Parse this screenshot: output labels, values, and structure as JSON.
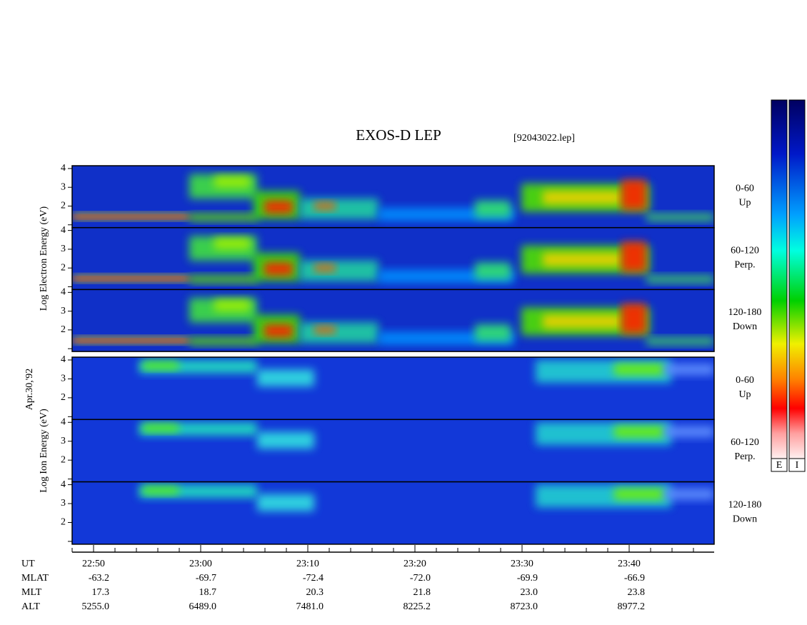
{
  "title": "EXOS-D LEP",
  "file": "[92043022.lep]",
  "date": "Apr.30,'92",
  "groups": [
    {
      "label": "Log Electron Energy (eV)",
      "panels": [
        {
          "ticks": [
            4,
            3,
            2
          ],
          "label": [
            "0-60",
            "Up"
          ]
        },
        {
          "ticks": [
            4,
            3,
            2
          ],
          "label": [
            "60-120",
            "Perp."
          ]
        },
        {
          "ticks": [
            4,
            3,
            2
          ],
          "label": [
            "120-180",
            "Down"
          ]
        }
      ]
    },
    {
      "label": "Log Ion Energy (eV)",
      "panels": [
        {
          "ticks": [
            4,
            3,
            2
          ],
          "label": [
            "0-60",
            "Up"
          ]
        },
        {
          "ticks": [
            4,
            3,
            2
          ],
          "label": [
            "60-120",
            "Perp."
          ]
        },
        {
          "ticks": [
            4,
            3,
            2
          ],
          "label": [
            "120-180",
            "Down"
          ]
        }
      ]
    }
  ],
  "axis": {
    "rows": [
      {
        "name": "UT",
        "values": [
          "22:50",
          "23:00",
          "23:10",
          "23:20",
          "23:30",
          "23:40"
        ]
      },
      {
        "name": "MLAT",
        "values": [
          "-63.2",
          "-69.7",
          "-72.4",
          "-72.0",
          "-69.9",
          "-66.9"
        ]
      },
      {
        "name": "MLT",
        "values": [
          "17.3",
          "18.7",
          "20.3",
          "21.8",
          "23.0",
          "23.8"
        ]
      },
      {
        "name": "ALT",
        "values": [
          "5255.0",
          "6489.0",
          "7481.0",
          "8225.2",
          "8723.0",
          "8977.2"
        ]
      }
    ]
  },
  "colorbars": [
    "E",
    "I"
  ]
}
